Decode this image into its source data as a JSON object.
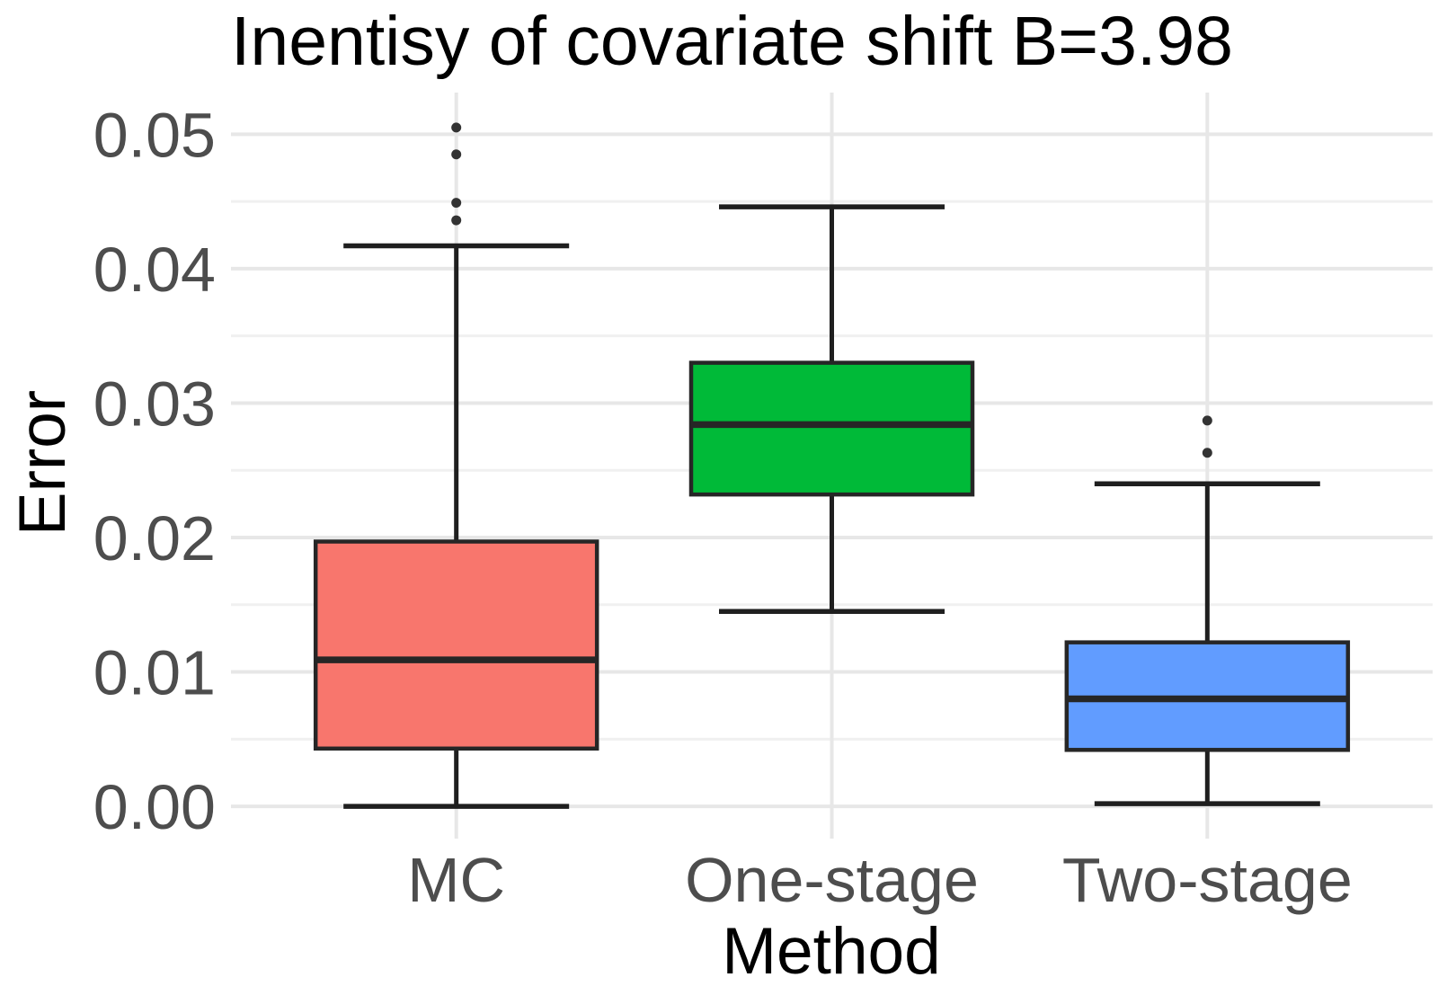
{
  "chart_data": {
    "type": "box",
    "title": "Inentisy of covariate shift B=3.98",
    "xlabel": "Method",
    "ylabel": "Error",
    "categories": [
      "MC",
      "One-stage",
      "Two-stage"
    ],
    "series": [
      {
        "name": "MC",
        "color": "#F8766D",
        "whisker_low": 0.0,
        "q1": 0.0043,
        "median": 0.0109,
        "q3": 0.0197,
        "whisker_high": 0.0417,
        "outliers": [
          0.0436,
          0.0449,
          0.0485,
          0.0505
        ]
      },
      {
        "name": "One-stage",
        "color": "#00BA38",
        "whisker_low": 0.0145,
        "q1": 0.0232,
        "median": 0.0284,
        "q3": 0.033,
        "whisker_high": 0.0446,
        "outliers": []
      },
      {
        "name": "Two-stage",
        "color": "#619CFF",
        "whisker_low": 0.0002,
        "q1": 0.0042,
        "median": 0.008,
        "q3": 0.0122,
        "whisker_high": 0.024,
        "outliers": [
          0.0263,
          0.0287
        ]
      }
    ],
    "y_ticks": [
      {
        "value": 0.0,
        "label": "0.00"
      },
      {
        "value": 0.01,
        "label": "0.01"
      },
      {
        "value": 0.02,
        "label": "0.02"
      },
      {
        "value": 0.03,
        "label": "0.03"
      },
      {
        "value": 0.04,
        "label": "0.04"
      },
      {
        "value": 0.05,
        "label": "0.05"
      }
    ],
    "y_minor_ticks": [
      0.005,
      0.015,
      0.025,
      0.035,
      0.045
    ],
    "ylim": [
      -0.0024,
      0.0531
    ],
    "grid": true,
    "legend": false,
    "colors": {
      "grid_major": "#E7E7E7",
      "grid_minor": "#F0F0F0",
      "box_border": "#262626",
      "whisker": "#1f1f1f",
      "outlier": "#333333",
      "tick_label": "#4d4d4d",
      "title": "#000000",
      "background": "#ffffff"
    }
  }
}
